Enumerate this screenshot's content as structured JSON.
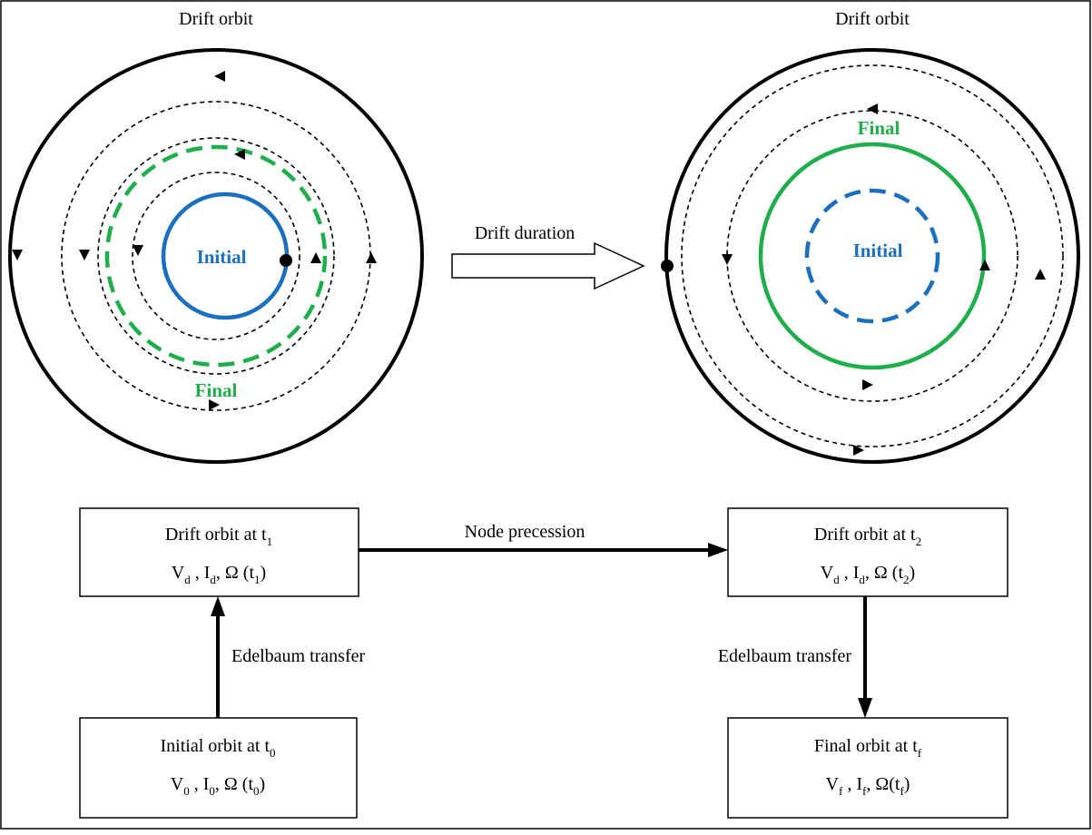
{
  "colors": {
    "initial": "#1a6fbf",
    "final": "#1fae4b",
    "orbit": "#000000"
  },
  "left_panel": {
    "title": "Drift orbit",
    "initial_label": "Initial",
    "final_label": "Final"
  },
  "right_panel": {
    "title": "Drift orbit",
    "initial_label": "Initial",
    "final_label": "Final"
  },
  "drift_arrow_label": "Drift duration",
  "boxes": {
    "drift_t1": {
      "line1": "Drift orbit at t",
      "line1_sub": "1",
      "v": "V",
      "v_sub": "d",
      "i": "I",
      "i_sub": "d",
      "omega": "Ω (t",
      "omega_sub": "1",
      "close": ")"
    },
    "drift_t2": {
      "line1": "Drift orbit at t",
      "line1_sub": "2",
      "v": "V",
      "v_sub": "d",
      "i": "I",
      "i_sub": "d",
      "omega": "Ω (t",
      "omega_sub": "2",
      "close": ")"
    },
    "initial_t0": {
      "line1": "Initial orbit at t",
      "line1_sub": "0",
      "v": "V",
      "v_sub": "0",
      "i": "I",
      "i_sub": "0",
      "omega": "Ω (t",
      "omega_sub": "0",
      "close": ")"
    },
    "final_tf": {
      "line1": "Final orbit at t",
      "line1_sub": "f",
      "v": "V",
      "v_sub": "f",
      "i": "I",
      "i_sub": "f",
      "omega": "Ω(t",
      "omega_sub": "f",
      "close": ")"
    }
  },
  "edges": {
    "node_precession": "Node precession",
    "edelbaum_left": "Edelbaum transfer",
    "edelbaum_right": "Edelbaum transfer"
  }
}
